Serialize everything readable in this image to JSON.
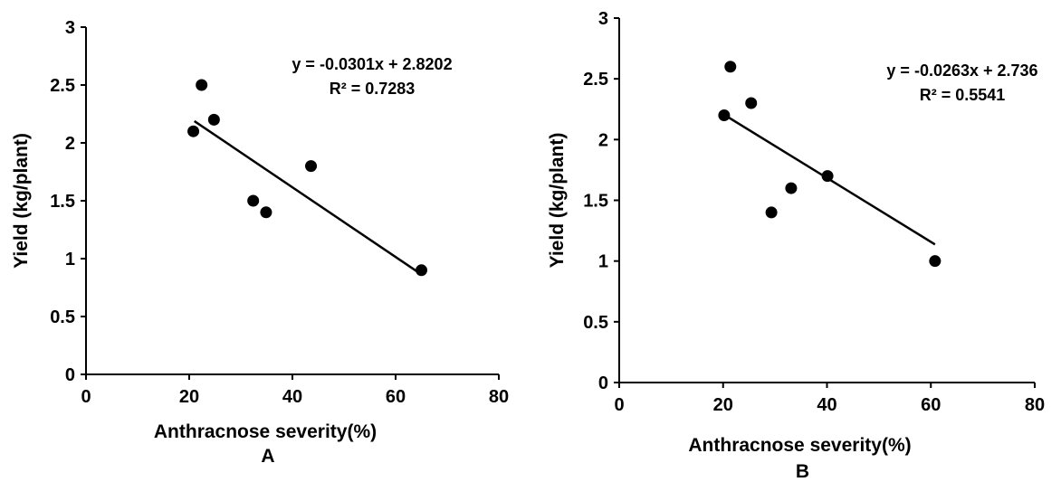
{
  "chart_data": [
    {
      "type": "scatter",
      "panel_label": "A",
      "xlabel": "Anthracnose severity(%)",
      "ylabel": "Yield (kg/plant)",
      "xlim": [
        0,
        80
      ],
      "ylim": [
        0,
        3
      ],
      "x_ticks": [
        0,
        20,
        40,
        60,
        80
      ],
      "y_ticks": [
        0,
        0.5,
        1,
        1.5,
        2,
        2.5,
        3
      ],
      "grid": false,
      "points": [
        {
          "x": 20.8,
          "y": 2.1
        },
        {
          "x": 22.4,
          "y": 2.5
        },
        {
          "x": 24.8,
          "y": 2.2
        },
        {
          "x": 32.4,
          "y": 1.5
        },
        {
          "x": 34.9,
          "y": 1.4
        },
        {
          "x": 43.6,
          "y": 1.8
        },
        {
          "x": 65.0,
          "y": 0.9
        }
      ],
      "trendline": {
        "slope": -0.0301,
        "intercept": 2.8202,
        "x_range": [
          21,
          65
        ]
      },
      "equation": "y = -0.0301x + 2.8202",
      "r_squared": "R² = 0.7283"
    },
    {
      "type": "scatter",
      "panel_label": "B",
      "xlabel": "Anthracnose severity(%)",
      "ylabel": "Yield  (kg/plant)",
      "xlim": [
        0,
        80
      ],
      "ylim": [
        0,
        3
      ],
      "x_ticks": [
        0,
        20,
        40,
        60,
        80
      ],
      "y_ticks": [
        0,
        0.5,
        1,
        1.5,
        2,
        2.5,
        3
      ],
      "grid": false,
      "points": [
        {
          "x": 20.2,
          "y": 2.2
        },
        {
          "x": 21.4,
          "y": 2.6
        },
        {
          "x": 25.4,
          "y": 2.3
        },
        {
          "x": 29.3,
          "y": 1.4
        },
        {
          "x": 33.1,
          "y": 1.6
        },
        {
          "x": 40.1,
          "y": 1.7
        },
        {
          "x": 60.8,
          "y": 1.0
        }
      ],
      "trendline": {
        "slope": -0.0263,
        "intercept": 2.736,
        "x_range": [
          20,
          60.8
        ]
      },
      "equation": "y = -0.0263x + 2.736",
      "r_squared": "R² = 0.5541"
    }
  ]
}
